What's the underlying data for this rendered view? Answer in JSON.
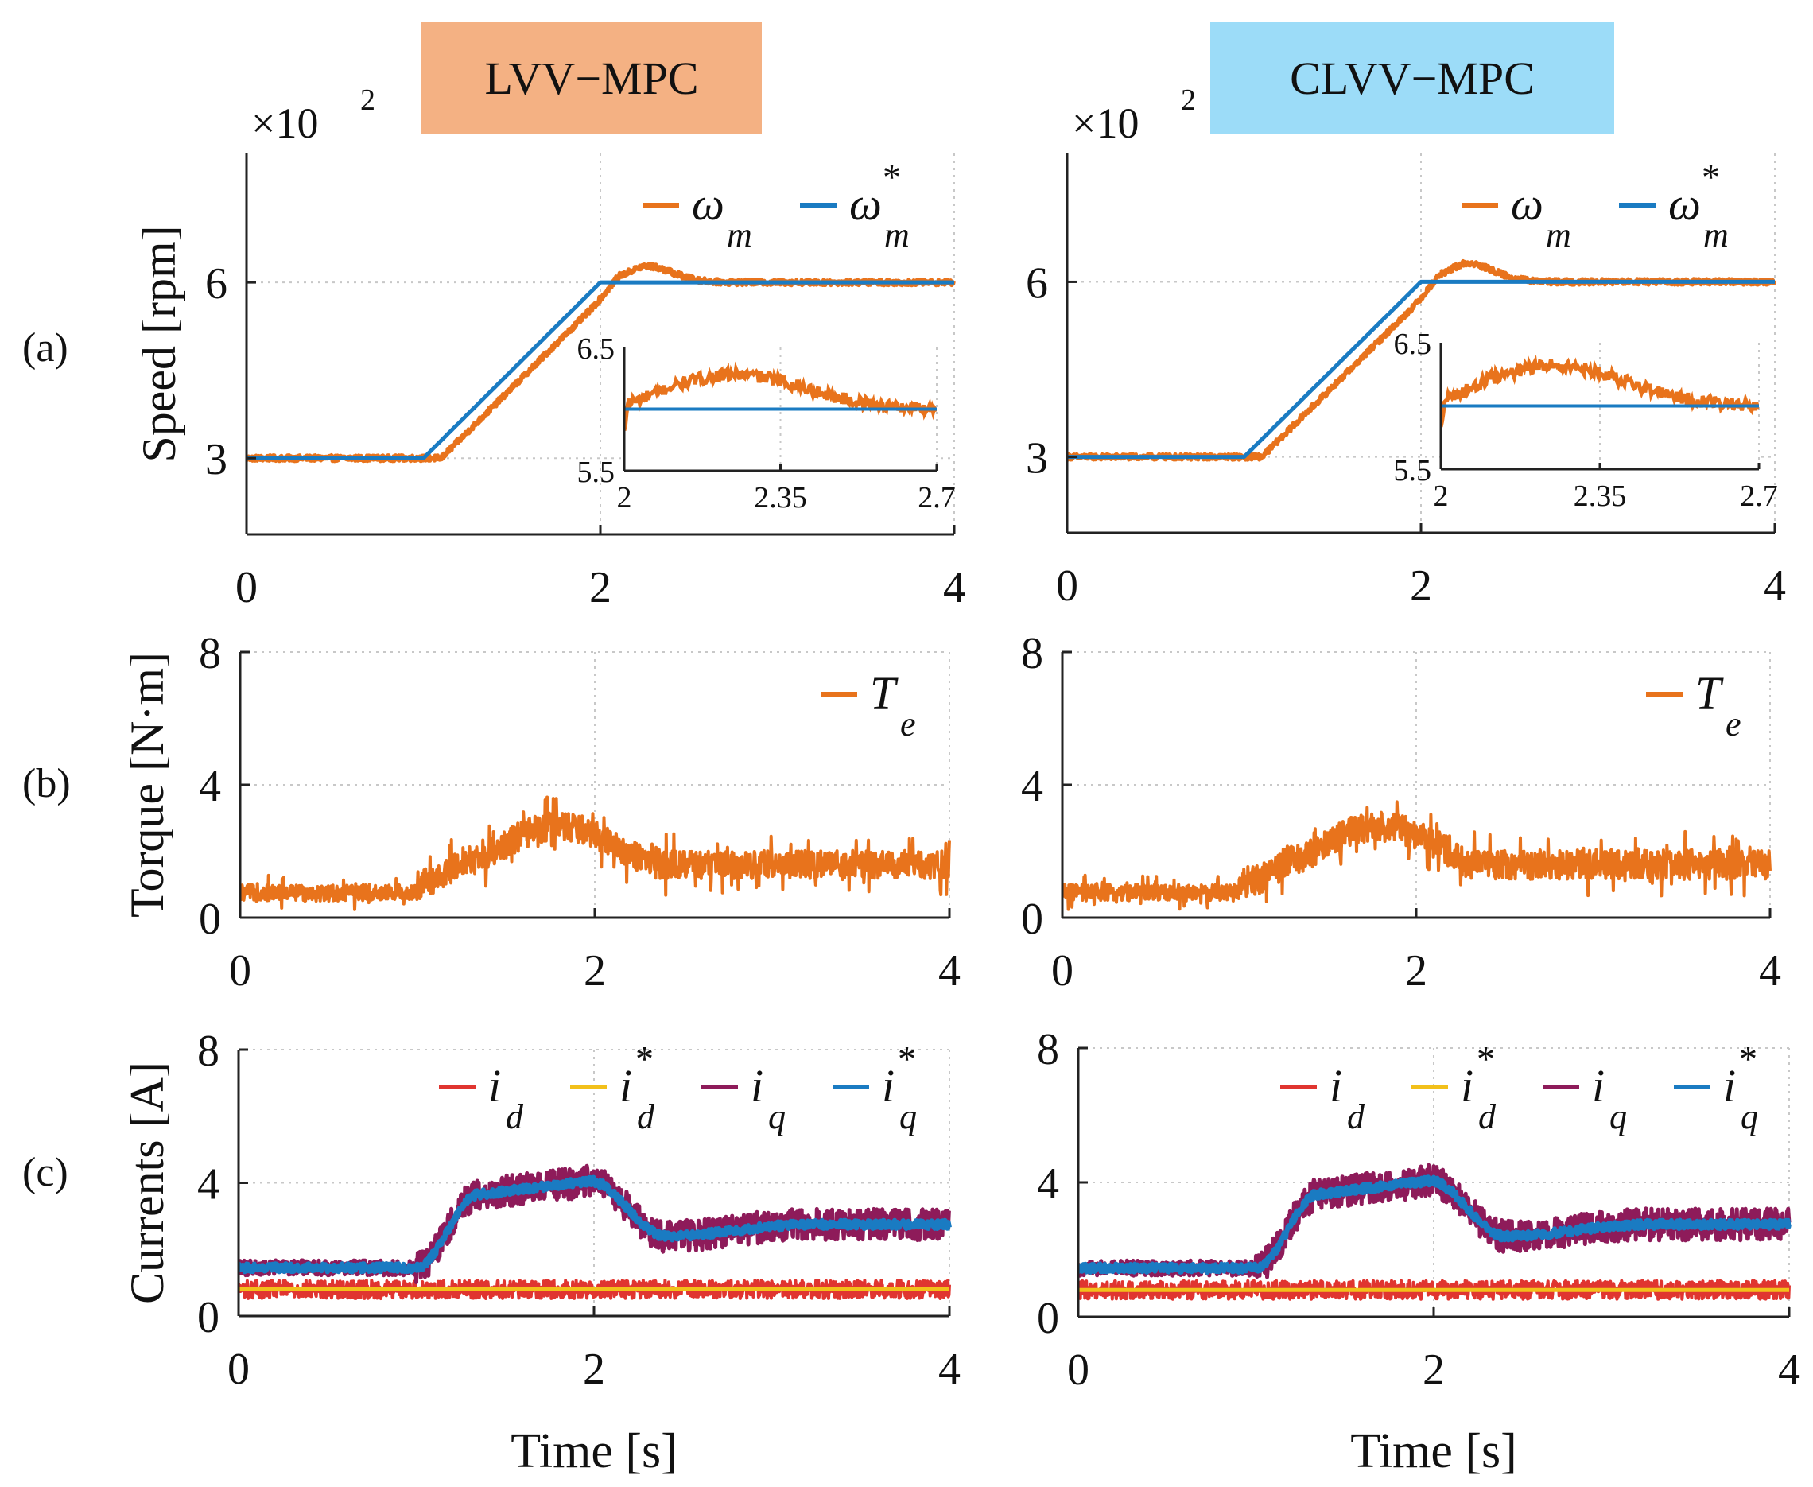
{
  "figure": {
    "method_left": "LVV−MPC",
    "method_right": "CLVV−MPC",
    "row_labels": [
      "(a)",
      "(b)",
      "(c)"
    ],
    "colors": {
      "orange": "#E8731C",
      "blue": "#1A7BC2",
      "red": "#E03530",
      "yellow": "#F2C01A",
      "purple": "#8E1B5A"
    }
  },
  "chart_data": [
    {
      "id": "speed-lvv",
      "type": "line",
      "method": "LVV−MPC",
      "ylabel": "Speed [rpm]",
      "xlabel": "",
      "exponent_label": "×10",
      "exponent_power": "2",
      "xlim": [
        0,
        4
      ],
      "ylim": [
        1.7,
        8.2
      ],
      "xticks": [
        "0",
        "2",
        "4"
      ],
      "yticks": [
        "3",
        "6"
      ],
      "legend": [
        {
          "sym": "ω",
          "sub": "m",
          "sup": ""
        },
        {
          "sym": "ω",
          "sub": "m",
          "sup": "*"
        }
      ],
      "series": [
        {
          "name": "ωm",
          "color": "orange",
          "width": 5,
          "kind": "speed_meas",
          "params": {
            "delay": 0.1,
            "overshoot": 0.28,
            "noise": 0.05
          }
        },
        {
          "name": "ωm*",
          "color": "blue",
          "width": 5,
          "kind": "speed_ref"
        }
      ],
      "inset": {
        "xlim": [
          2,
          2.7
        ],
        "ylim": [
          5.5,
          6.5
        ],
        "xticks": [
          "2",
          "2.35",
          "2.7"
        ],
        "yticks": [
          "5.5",
          "6.5"
        ]
      }
    },
    {
      "id": "speed-clvv",
      "type": "line",
      "method": "CLVV−MPC",
      "ylabel": "",
      "xlabel": "",
      "exponent_label": "×10",
      "exponent_power": "2",
      "xlim": [
        0,
        4
      ],
      "ylim": [
        1.7,
        8.2
      ],
      "xticks": [
        "0",
        "2",
        "4"
      ],
      "yticks": [
        "3",
        "6"
      ],
      "legend": [
        {
          "sym": "ω",
          "sub": "m",
          "sup": ""
        },
        {
          "sym": "ω",
          "sub": "m",
          "sup": "*"
        }
      ],
      "series": [
        {
          "name": "ωm",
          "color": "orange",
          "width": 5,
          "kind": "speed_meas",
          "params": {
            "delay": 0.1,
            "overshoot": 0.32,
            "noise": 0.05
          }
        },
        {
          "name": "ωm*",
          "color": "blue",
          "width": 5,
          "kind": "speed_ref"
        }
      ],
      "inset": {
        "xlim": [
          2,
          2.7
        ],
        "ylim": [
          5.5,
          6.5
        ],
        "xticks": [
          "2",
          "2.35",
          "2.7"
        ],
        "yticks": [
          "5.5",
          "6.5"
        ]
      }
    },
    {
      "id": "torque-lvv",
      "type": "line",
      "method": "LVV−MPC",
      "ylabel": "Torque [N·m]",
      "xlabel": "",
      "xlim": [
        0,
        4
      ],
      "ylim": [
        0,
        8
      ],
      "xticks": [
        "0",
        "2",
        "4"
      ],
      "yticks": [
        "0",
        "4",
        "8"
      ],
      "legend": [
        {
          "sym": "T",
          "sub": "e",
          "sup": ""
        }
      ],
      "series": [
        {
          "name": "Te",
          "color": "orange",
          "width": 4,
          "kind": "torque",
          "params": {
            "noise": 0.85
          }
        }
      ]
    },
    {
      "id": "torque-clvv",
      "type": "line",
      "method": "CLVV−MPC",
      "ylabel": "",
      "xlabel": "",
      "xlim": [
        0,
        4
      ],
      "ylim": [
        0,
        8
      ],
      "xticks": [
        "0",
        "2",
        "4"
      ],
      "yticks": [
        "0",
        "4",
        "8"
      ],
      "legend": [
        {
          "sym": "T",
          "sub": "e",
          "sup": ""
        }
      ],
      "series": [
        {
          "name": "Te",
          "color": "orange",
          "width": 4,
          "kind": "torque",
          "params": {
            "noise": 0.9
          }
        }
      ]
    },
    {
      "id": "currents-lvv",
      "type": "line",
      "method": "LVV−MPC",
      "ylabel": "Currents [A]",
      "xlabel": "Time [s]",
      "xlim": [
        0,
        4
      ],
      "ylim": [
        0,
        8
      ],
      "xticks": [
        "0",
        "2",
        "4"
      ],
      "yticks": [
        "0",
        "4",
        "8"
      ],
      "legend": [
        {
          "sym": "i",
          "sub": "d",
          "sup": ""
        },
        {
          "sym": "i",
          "sub": "d",
          "sup": "*"
        },
        {
          "sym": "i",
          "sub": "q",
          "sup": ""
        },
        {
          "sym": "i",
          "sub": "q",
          "sup": "*"
        }
      ],
      "series": [
        {
          "name": "id",
          "color": "red",
          "width": 4,
          "kind": "id_meas"
        },
        {
          "name": "id*",
          "color": "yellow",
          "width": 5,
          "kind": "const",
          "params": {
            "value": 0.8
          }
        },
        {
          "name": "iq",
          "color": "purple",
          "width": 5,
          "kind": "iq_meas"
        },
        {
          "name": "iq*",
          "color": "blue",
          "width": 6,
          "kind": "iq_ref"
        }
      ]
    },
    {
      "id": "currents-clvv",
      "type": "line",
      "method": "CLVV−MPC",
      "ylabel": "",
      "xlabel": "Time [s]",
      "xlim": [
        0,
        4
      ],
      "ylim": [
        0,
        8
      ],
      "xticks": [
        "0",
        "2",
        "4"
      ],
      "yticks": [
        "0",
        "4",
        "8"
      ],
      "legend": [
        {
          "sym": "i",
          "sub": "d",
          "sup": ""
        },
        {
          "sym": "i",
          "sub": "d",
          "sup": "*"
        },
        {
          "sym": "i",
          "sub": "q",
          "sup": ""
        },
        {
          "sym": "i",
          "sub": "q",
          "sup": "*"
        }
      ],
      "series": [
        {
          "name": "id",
          "color": "red",
          "width": 4,
          "kind": "id_meas"
        },
        {
          "name": "id*",
          "color": "yellow",
          "width": 5,
          "kind": "const",
          "params": {
            "value": 0.8
          }
        },
        {
          "name": "iq",
          "color": "purple",
          "width": 5,
          "kind": "iq_meas"
        },
        {
          "name": "iq*",
          "color": "blue",
          "width": 6,
          "kind": "iq_ref"
        }
      ]
    }
  ]
}
